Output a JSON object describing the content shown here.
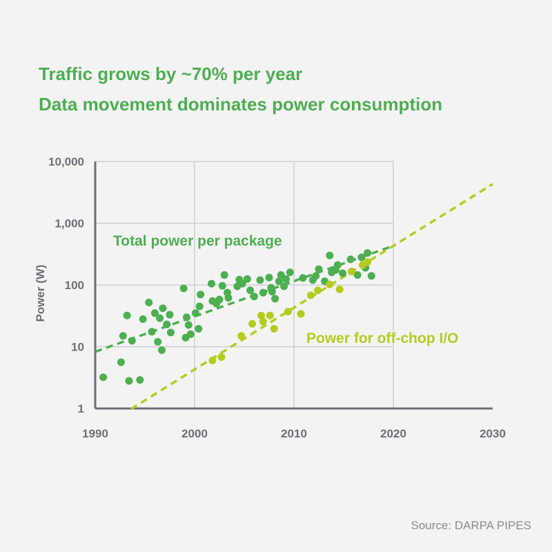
{
  "headline": {
    "line1": "Traffic grows by ~70% per year",
    "line2": "Data movement dominates power consumption"
  },
  "source": "Source: DARPA PIPES",
  "colors": {
    "total": "#4caf50",
    "io": "#b5cc1e",
    "grid": "#cfcfd4",
    "axis": "#6e6e78",
    "text": "#6e6e78"
  },
  "chart_data": {
    "type": "scatter",
    "xlabel": "",
    "ylabel": "Power (W)",
    "xlim": [
      1990,
      2030
    ],
    "ylim": [
      1,
      10000
    ],
    "y_scale": "log",
    "grid": true,
    "x_ticks": [
      1990,
      2000,
      2010,
      2020,
      2030
    ],
    "x_tick_labels": [
      "1990",
      "2000",
      "2010",
      "2020",
      "2030"
    ],
    "y_ticks": [
      1,
      10,
      100,
      1000,
      10000
    ],
    "y_tick_labels": [
      "1",
      "10",
      "100",
      "1,000",
      "10,000"
    ],
    "series": [
      {
        "name": "Total power per package",
        "color": "#4caf50",
        "points": [
          [
            1990.8,
            3.2
          ],
          [
            1992.6,
            5.6
          ],
          [
            1992.8,
            15
          ],
          [
            1993.2,
            32
          ],
          [
            1993.4,
            2.8
          ],
          [
            1993.7,
            12.5
          ],
          [
            1994.5,
            2.9
          ],
          [
            1994.8,
            28
          ],
          [
            1995.4,
            52
          ],
          [
            1995.7,
            17.5
          ],
          [
            1996.0,
            35
          ],
          [
            1996.3,
            12
          ],
          [
            1996.5,
            29
          ],
          [
            1996.7,
            8.8
          ],
          [
            1996.8,
            42
          ],
          [
            1997.2,
            23
          ],
          [
            1997.5,
            33
          ],
          [
            1997.6,
            17
          ],
          [
            1998.9,
            88
          ],
          [
            1999.1,
            14
          ],
          [
            1999.2,
            30
          ],
          [
            1999.4,
            22.5
          ],
          [
            1999.6,
            16
          ],
          [
            2000.1,
            35
          ],
          [
            2000.4,
            19.5
          ],
          [
            2000.5,
            45
          ],
          [
            2000.6,
            70
          ],
          [
            2001.7,
            105
          ],
          [
            2001.8,
            55
          ],
          [
            2002.2,
            50
          ],
          [
            2002.5,
            58
          ],
          [
            2002.8,
            97
          ],
          [
            2003.0,
            145
          ],
          [
            2003.3,
            75
          ],
          [
            2003.4,
            62
          ],
          [
            2004.3,
            95
          ],
          [
            2004.5,
            122
          ],
          [
            2004.8,
            105
          ],
          [
            2005.3,
            125
          ],
          [
            2005.6,
            82
          ],
          [
            2006.0,
            65
          ],
          [
            2006.6,
            120
          ],
          [
            2006.9,
            75
          ],
          [
            2007.5,
            132
          ],
          [
            2007.7,
            90
          ],
          [
            2007.8,
            78
          ],
          [
            2008.1,
            60
          ],
          [
            2008.5,
            115
          ],
          [
            2008.7,
            145
          ],
          [
            2009.0,
            95
          ],
          [
            2009.2,
            125
          ],
          [
            2009.6,
            160
          ],
          [
            2010.9,
            130
          ],
          [
            2011.9,
            120
          ],
          [
            2012.2,
            140
          ],
          [
            2012.5,
            180
          ],
          [
            2013.1,
            115
          ],
          [
            2013.6,
            300
          ],
          [
            2013.8,
            160
          ],
          [
            2014.2,
            175
          ],
          [
            2014.4,
            210
          ],
          [
            2014.9,
            155
          ],
          [
            2015.7,
            260
          ],
          [
            2016.4,
            145
          ],
          [
            2016.8,
            280
          ],
          [
            2017.2,
            190
          ],
          [
            2017.4,
            330
          ],
          [
            2017.8,
            140
          ]
        ]
      },
      {
        "name": "Power for off-chop I/O",
        "color": "#b5cc1e",
        "points": [
          [
            2001.8,
            6
          ],
          [
            2002.7,
            6.8
          ],
          [
            2004.7,
            15
          ],
          [
            2005.8,
            23.5
          ],
          [
            2006.7,
            32
          ],
          [
            2006.9,
            25.5
          ],
          [
            2007.6,
            32
          ],
          [
            2008.0,
            19.5
          ],
          [
            2009.4,
            37
          ],
          [
            2010.7,
            34
          ],
          [
            2011.7,
            68
          ],
          [
            2012.4,
            82
          ],
          [
            2013.6,
            102
          ],
          [
            2014.6,
            85
          ],
          [
            2015.8,
            165
          ],
          [
            2016.9,
            210
          ],
          [
            2017.4,
            235
          ]
        ]
      }
    ],
    "trendlines": [
      {
        "series": "Total power per package",
        "from": [
          1990,
          8.3
        ],
        "to": [
          2020,
          430
        ]
      },
      {
        "series": "Power for off-chop I/O",
        "from": [
          1993.6,
          0.98
        ],
        "to": [
          2030,
          4300
        ]
      }
    ],
    "annotations": [
      {
        "text": "Total power per package",
        "series": "Total power per package"
      },
      {
        "text": "Power for off-chop I/O",
        "series": "Power for off-chop I/O"
      }
    ]
  }
}
